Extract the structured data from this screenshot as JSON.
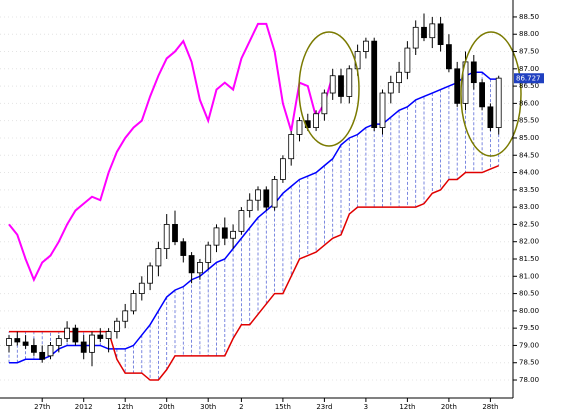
{
  "chart_data": {
    "type": "candlestick",
    "categories": [
      null,
      null,
      null,
      null,
      "27th",
      null,
      null,
      null,
      null,
      "2012",
      null,
      null,
      null,
      null,
      "12th",
      null,
      null,
      null,
      null,
      "20th",
      null,
      null,
      null,
      null,
      "30th",
      null,
      null,
      null,
      "2",
      null,
      null,
      null,
      null,
      "15th",
      null,
      null,
      null,
      null,
      "23rd",
      null,
      null,
      null,
      null,
      "3",
      null,
      null,
      null,
      null,
      "12th",
      null,
      null,
      null,
      null,
      "20th",
      null,
      null,
      null,
      null,
      "28th",
      null
    ],
    "open": [
      79.0,
      79.2,
      79.1,
      79.0,
      78.8,
      78.7,
      79.0,
      79.2,
      79.5,
      79.1,
      78.8,
      79.3,
      79.2,
      79.4,
      79.7,
      80.0,
      80.5,
      80.8,
      81.3,
      81.8,
      82.5,
      82.0,
      81.6,
      81.1,
      81.4,
      81.9,
      82.4,
      82.1,
      82.3,
      82.9,
      83.2,
      83.5,
      83.0,
      83.8,
      84.4,
      85.1,
      85.5,
      85.3,
      85.7,
      86.3,
      86.8,
      86.2,
      87.0,
      87.5,
      87.8,
      85.3,
      86.3,
      86.6,
      86.9,
      87.6,
      88.2,
      87.9,
      88.3,
      87.7,
      87.0,
      86.0,
      87.2,
      86.6,
      85.9,
      85.3
    ],
    "high": [
      79.3,
      79.4,
      79.3,
      79.2,
      79.0,
      79.1,
      79.3,
      79.7,
      79.6,
      79.3,
      79.4,
      79.5,
      79.5,
      79.8,
      80.2,
      80.6,
      81.0,
      81.4,
      82.0,
      82.8,
      82.9,
      82.1,
      81.7,
      81.5,
      82.0,
      82.5,
      82.7,
      82.5,
      83.0,
      83.4,
      83.6,
      83.6,
      83.9,
      84.5,
      85.2,
      85.6,
      85.7,
      85.8,
      86.4,
      87.0,
      87.0,
      87.1,
      87.7,
      87.9,
      87.9,
      86.4,
      86.8,
      87.2,
      87.8,
      88.4,
      88.6,
      88.5,
      88.5,
      88.0,
      87.2,
      87.5,
      87.4,
      86.7,
      86.0,
      86.8
    ],
    "low": [
      78.8,
      79.0,
      78.9,
      78.7,
      78.5,
      78.6,
      78.8,
      79.1,
      79.0,
      78.6,
      78.4,
      79.1,
      78.8,
      79.2,
      79.5,
      79.9,
      80.3,
      80.6,
      81.0,
      81.5,
      81.9,
      81.4,
      80.8,
      80.9,
      81.2,
      81.7,
      81.9,
      81.8,
      82.2,
      82.7,
      82.9,
      82.9,
      82.9,
      83.7,
      84.2,
      84.9,
      85.2,
      85.2,
      85.5,
      86.1,
      86.0,
      86.0,
      86.8,
      87.3,
      85.2,
      85.1,
      86.0,
      86.3,
      86.7,
      87.4,
      87.8,
      87.6,
      87.5,
      86.9,
      85.9,
      85.8,
      86.4,
      85.8,
      85.2,
      85.1
    ],
    "close": [
      79.2,
      79.1,
      79.0,
      78.8,
      78.6,
      79.0,
      79.2,
      79.5,
      79.1,
      78.8,
      79.3,
      79.2,
      79.4,
      79.7,
      80.0,
      80.5,
      80.8,
      81.3,
      81.8,
      82.5,
      82.0,
      81.6,
      81.1,
      81.4,
      81.9,
      82.4,
      82.1,
      82.3,
      82.9,
      83.2,
      83.5,
      83.0,
      83.8,
      84.4,
      85.1,
      85.5,
      85.3,
      85.7,
      86.3,
      86.8,
      86.2,
      87.0,
      87.5,
      87.8,
      85.3,
      86.3,
      86.6,
      86.9,
      87.6,
      88.2,
      87.9,
      88.3,
      87.7,
      87.0,
      86.0,
      87.2,
      86.6,
      85.9,
      85.3,
      86.73
    ],
    "series": [
      {
        "color": "#0000ff",
        "values": [
          78.5,
          78.5,
          78.6,
          78.6,
          78.6,
          78.7,
          78.9,
          79.0,
          79.0,
          79.0,
          79.0,
          79.0,
          78.9,
          78.9,
          78.9,
          79.0,
          79.3,
          79.6,
          80.0,
          80.4,
          80.6,
          80.7,
          80.9,
          81.0,
          81.2,
          81.4,
          81.5,
          81.8,
          82.1,
          82.4,
          82.7,
          82.9,
          83.1,
          83.4,
          83.6,
          83.8,
          83.9,
          84.0,
          84.2,
          84.4,
          84.8,
          85.0,
          85.1,
          85.3,
          85.4,
          85.4,
          85.6,
          85.8,
          85.9,
          86.1,
          86.2,
          86.3,
          86.4,
          86.5,
          86.6,
          86.8,
          86.9,
          86.9,
          86.7,
          86.7
        ]
      },
      {
        "color": "#e00000",
        "values": [
          79.4,
          79.4,
          79.4,
          79.4,
          79.4,
          79.4,
          79.4,
          79.4,
          79.4,
          79.4,
          79.4,
          79.4,
          79.4,
          78.6,
          78.2,
          78.2,
          78.2,
          78.0,
          78.0,
          78.3,
          78.7,
          78.7,
          78.7,
          78.7,
          78.7,
          78.7,
          78.7,
          79.2,
          79.6,
          79.6,
          79.9,
          80.2,
          80.5,
          80.5,
          81.0,
          81.5,
          81.6,
          81.7,
          81.9,
          82.1,
          82.2,
          82.8,
          83.0,
          83.0,
          83.0,
          83.0,
          83.0,
          83.0,
          83.0,
          83.0,
          83.1,
          83.4,
          83.5,
          83.8,
          83.8,
          84.0,
          84.0,
          84.0,
          84.1,
          84.2
        ]
      },
      {
        "color": "#ff00ff",
        "values": [
          82.5,
          82.2,
          81.5,
          80.9,
          81.4,
          81.6,
          82.0,
          82.5,
          82.9,
          83.1,
          83.3,
          83.2,
          84.0,
          84.6,
          85.0,
          85.3,
          85.5,
          86.2,
          86.8,
          87.3,
          87.5,
          87.8,
          87.2,
          86.1,
          85.5,
          86.4,
          86.6,
          86.4,
          87.3,
          87.8,
          88.3,
          88.3,
          87.5,
          86.0,
          85.2,
          86.6,
          86.5,
          85.6,
          86.0,
          86.8,
          null,
          null,
          null,
          null,
          null,
          null,
          null,
          null,
          null,
          null,
          null,
          null,
          null,
          null,
          null,
          null,
          null,
          null,
          null,
          null
        ]
      }
    ],
    "last_price": 86.727,
    "ylim": [
      77.48,
      88.99
    ],
    "yticks": [
      {
        "value": 78,
        "label": "78.00"
      },
      {
        "value": 78.5,
        "label": "78.50"
      },
      {
        "value": 79,
        "label": "79.00"
      },
      {
        "value": 79.5,
        "label": "79.50"
      },
      {
        "value": 80,
        "label": "80.00"
      },
      {
        "value": 80.5,
        "label": "80.50"
      },
      {
        "value": 81,
        "label": "81.00"
      },
      {
        "value": 81.5,
        "label": "81.50"
      },
      {
        "value": 82,
        "label": "82.00"
      },
      {
        "value": 82.5,
        "label": "82.50"
      },
      {
        "value": 83,
        "label": "83.00"
      },
      {
        "value": 83.5,
        "label": "83.50"
      },
      {
        "value": 84,
        "label": "84.00"
      },
      {
        "value": 84.5,
        "label": "84.50"
      },
      {
        "value": 85,
        "label": "85.00"
      },
      {
        "value": 85.5,
        "label": "85.50"
      },
      {
        "value": 86,
        "label": "86.00"
      },
      {
        "value": 86.5,
        "label": "86.50"
      },
      {
        "value": 87,
        "label": "87.00"
      },
      {
        "value": 87.5,
        "label": "87.50"
      },
      {
        "value": 88,
        "label": "88.00"
      },
      {
        "value": 88.5,
        "label": "88.50"
      }
    ],
    "grid": true
  }
}
